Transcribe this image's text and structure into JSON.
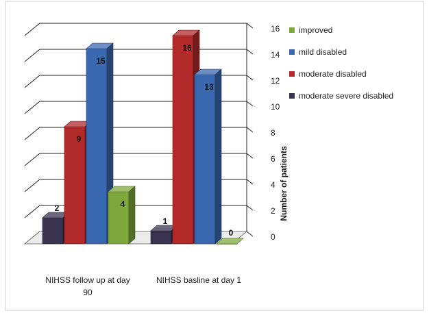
{
  "chart_data": {
    "type": "bar",
    "categories": [
      "NIHSS follow up at day 90",
      "NIHSS basline at day 1"
    ],
    "category_lines": [
      [
        "NIHSS follow up at day",
        "90"
      ],
      [
        "NIHSS basline at day 1"
      ]
    ],
    "series": [
      {
        "name": "moderate severe disabled",
        "values": [
          2,
          1
        ],
        "color": "#3b3450"
      },
      {
        "name": "moderate disabled",
        "values": [
          9,
          16
        ],
        "color": "#b22a2a"
      },
      {
        "name": "mild disabled",
        "values": [
          15,
          13
        ],
        "color": "#3a68b0"
      },
      {
        "name": "improved",
        "values": [
          4,
          0
        ],
        "color": "#7ea83c"
      }
    ],
    "legend_order": [
      "improved",
      "mild disabled",
      "moderate disabled",
      "moderate severe disabled"
    ],
    "ylabel": "Number of patients",
    "yticks": [
      0,
      2,
      4,
      6,
      8,
      10,
      12,
      14,
      16
    ],
    "ylim": [
      0,
      16
    ],
    "grid": true,
    "legend_position": "top-right",
    "style": "3d-clustered-column"
  }
}
